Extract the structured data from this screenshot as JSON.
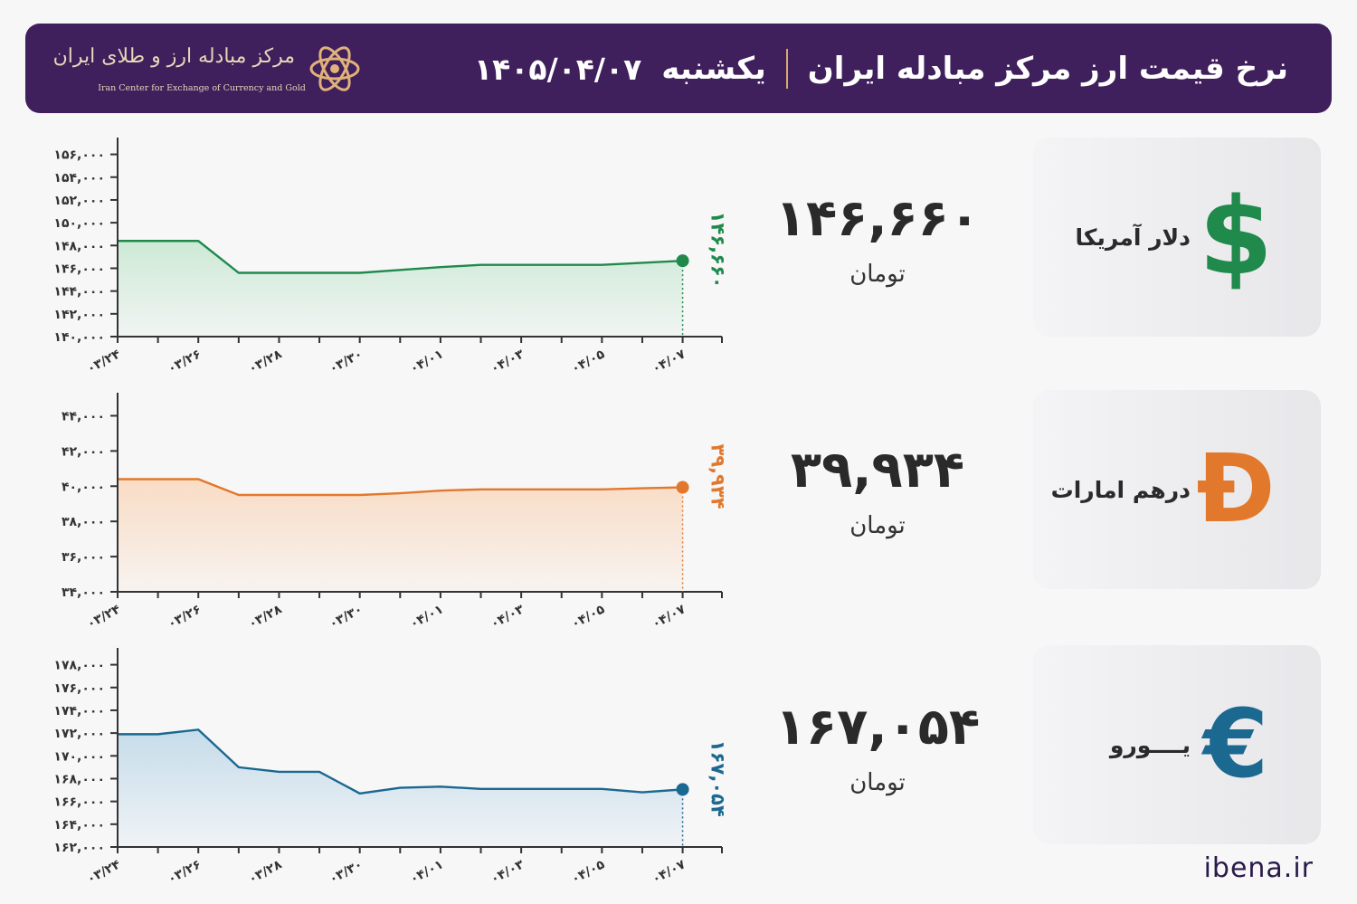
{
  "header": {
    "title": "نرخ قیمت ارز مرکز مبادله ایران",
    "day": "یکشنبه",
    "date": "۱۴۰۵/۰۴/۰۷",
    "logo_fa": "مرکز مبادله ارز و طلای ایران",
    "logo_en": "Iran Center for Exchange of Currency and Gold",
    "bg_color": "#3f1f5c"
  },
  "currencies": [
    {
      "name": "دلار آمریکا",
      "value": "۱۴۶,۶۶۰",
      "unit": "تومان",
      "symbol": "$",
      "symbol_icon": "dollar-icon",
      "color": "#1f8a4c"
    },
    {
      "name": "درهم امارات",
      "value": "۳۹,۹۳۴",
      "unit": "تومان",
      "symbol": "Đ",
      "symbol_icon": "dirham-icon",
      "color": "#e2782c"
    },
    {
      "name": "یــــورو",
      "value": "۱۶۷,۰۵۴",
      "unit": "تومان",
      "symbol": "€",
      "symbol_icon": "euro-icon",
      "color": "#1b6890"
    }
  ],
  "chart_data": [
    {
      "type": "area",
      "x": [
        "۰۳/۲۴",
        "۰۳/۲۵",
        "۰۳/۲۶",
        "۰۳/۲۷",
        "۰۳/۲۸",
        "۰۳/۲۹",
        "۰۳/۳۰",
        "۰۳/۳۱",
        "۰۴/۰۱",
        "۰۴/۰۲",
        "۰۴/۰۳",
        "۰۴/۰۴",
        "۰۴/۰۵",
        "۰۴/۰۶",
        "۰۴/۰۷"
      ],
      "x_tick_labels": [
        "۰۳/۲۴",
        "۰۳/۲۶",
        "۰۳/۲۸",
        "۰۳/۳۰",
        "۰۴/۰۱",
        "۰۴/۰۳",
        "۰۴/۰۵",
        "۰۴/۰۷"
      ],
      "values": [
        148400,
        148400,
        148400,
        145600,
        145600,
        145600,
        145600,
        145850,
        146100,
        146300,
        146300,
        146300,
        146300,
        146480,
        146660
      ],
      "ylim": [
        140000,
        157000
      ],
      "yticks": [
        140000,
        142000,
        144000,
        146000,
        148000,
        150000,
        152000,
        154000,
        156000
      ],
      "ytick_labels": [
        "۱۴۰,۰۰۰",
        "۱۴۲,۰۰۰",
        "۱۴۴,۰۰۰",
        "۱۴۶,۰۰۰",
        "۱۴۸,۰۰۰",
        "۱۵۰,۰۰۰",
        "۱۵۲,۰۰۰",
        "۱۵۴,۰۰۰",
        "۱۵۶,۰۰۰"
      ],
      "last_label": "۱۴۶,۶۶۰",
      "color": "#1f8a4c",
      "fill": "#cde9d6"
    },
    {
      "type": "area",
      "x": [
        "۰۳/۲۴",
        "۰۳/۲۵",
        "۰۳/۲۶",
        "۰۳/۲۷",
        "۰۳/۲۸",
        "۰۳/۲۹",
        "۰۳/۳۰",
        "۰۳/۳۱",
        "۰۴/۰۱",
        "۰۴/۰۲",
        "۰۴/۰۳",
        "۰۴/۰۴",
        "۰۴/۰۵",
        "۰۴/۰۶",
        "۰۴/۰۷"
      ],
      "x_tick_labels": [
        "۰۳/۲۴",
        "۰۳/۲۶",
        "۰۳/۲۸",
        "۰۳/۳۰",
        "۰۴/۰۱",
        "۰۴/۰۳",
        "۰۴/۰۵",
        "۰۴/۰۷"
      ],
      "values": [
        40400,
        40400,
        40400,
        39500,
        39500,
        39500,
        39500,
        39600,
        39750,
        39820,
        39820,
        39820,
        39820,
        39880,
        39934
      ],
      "ylim": [
        34000,
        45000
      ],
      "yticks": [
        34000,
        36000,
        38000,
        40000,
        42000,
        44000
      ],
      "ytick_labels": [
        "۳۴,۰۰۰",
        "۳۶,۰۰۰",
        "۳۸,۰۰۰",
        "۴۰,۰۰۰",
        "۴۲,۰۰۰",
        "۴۴,۰۰۰"
      ],
      "last_label": "۳۹,۹۳۴",
      "color": "#e2782c",
      "fill": "#f9dcc5"
    },
    {
      "type": "area",
      "x": [
        "۰۳/۲۴",
        "۰۳/۲۵",
        "۰۳/۲۶",
        "۰۳/۲۷",
        "۰۳/۲۸",
        "۰۳/۲۹",
        "۰۳/۳۰",
        "۰۳/۳۱",
        "۰۴/۰۱",
        "۰۴/۰۲",
        "۰۴/۰۳",
        "۰۴/۰۴",
        "۰۴/۰۵",
        "۰۴/۰۶",
        "۰۴/۰۷"
      ],
      "x_tick_labels": [
        "۰۳/۲۴",
        "۰۳/۲۶",
        "۰۳/۲۸",
        "۰۳/۳۰",
        "۰۴/۰۱",
        "۰۴/۰۳",
        "۰۴/۰۵",
        "۰۴/۰۷"
      ],
      "values": [
        171900,
        171900,
        172300,
        169000,
        168600,
        168600,
        166700,
        167200,
        167300,
        167100,
        167100,
        167100,
        167100,
        166800,
        167054
      ],
      "ylim": [
        162000,
        179000
      ],
      "yticks": [
        162000,
        164000,
        166000,
        168000,
        170000,
        172000,
        174000,
        176000,
        178000
      ],
      "ytick_labels": [
        "۱۶۲,۰۰۰",
        "۱۶۴,۰۰۰",
        "۱۶۶,۰۰۰",
        "۱۶۸,۰۰۰",
        "۱۷۰,۰۰۰",
        "۱۷۲,۰۰۰",
        "۱۷۴,۰۰۰",
        "۱۷۶,۰۰۰",
        "۱۷۸,۰۰۰"
      ],
      "last_label": "۱۶۷,۰۵۴",
      "color": "#1b6890",
      "fill": "#c6dcea"
    }
  ],
  "footer": {
    "brand": "ibena.ir"
  }
}
